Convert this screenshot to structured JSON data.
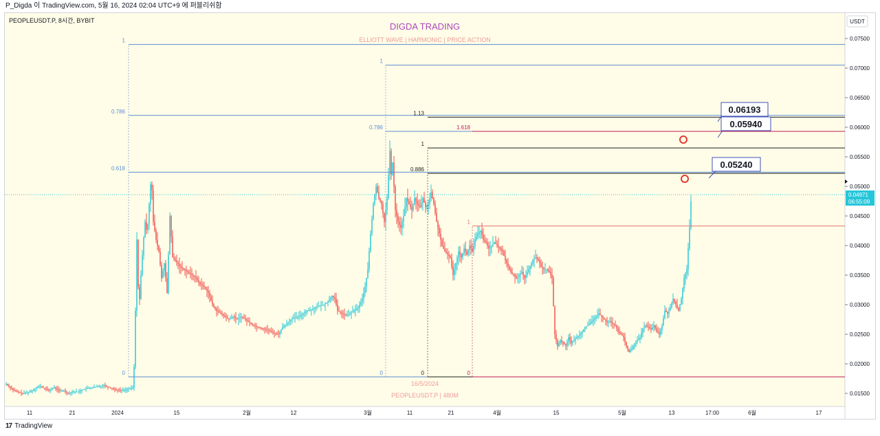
{
  "header": {
    "caption": "P_Digda 이 TradingView.com, 5월 16, 2024 02:04 UTC+9 에 퍼블리쉬함"
  },
  "chart": {
    "symbol_info": "PEOPLEUSDT.P, 8시간, BYBIT",
    "title": "DIGDA TRADING",
    "subtitle": "ELLIOTT WAVE   |   HARMONIC   |   PRICE ACTION",
    "currency": "USDT",
    "watermark_date": "16/5/2024",
    "watermark_symbol": "PEOPLEUSDT.P | 480M",
    "current_price": "0.04971",
    "countdown": "06:55:09"
  },
  "footer": {
    "brand": "TradingView"
  },
  "colors": {
    "background": "#fffde7",
    "up": "#26c6da",
    "down": "#ef5350",
    "fib_blue": "#5b8bd6",
    "fib_black": "#1e1e1e",
    "fib_red": "#c2185b",
    "title": "#ab47bc",
    "subtitle": "#ef9a9a"
  },
  "chart_data": {
    "type": "candlestick",
    "y_axis_ticks": [
      "0.07500",
      "0.07000",
      "0.06500",
      "0.06000",
      "0.05500",
      "0.05000",
      "0.04500",
      "0.04000",
      "0.03500",
      "0.03000",
      "0.02500",
      "0.02000",
      "0.01500"
    ],
    "x_axis_ticks": [
      "11",
      "21",
      "2024",
      "15",
      "2월",
      "12",
      "3월",
      "11",
      "21",
      "4월",
      "15",
      "5월",
      "13",
      "17:00",
      "6월",
      "17"
    ],
    "ylim": [
      0.0128,
      0.0793
    ],
    "fib_levels": [
      {
        "group": "blue-big",
        "label": "1",
        "price": 0.074
      },
      {
        "group": "blue-big",
        "label": "0.786",
        "price": 0.062
      },
      {
        "group": "blue-big",
        "label": "0.618",
        "price": 0.0524
      },
      {
        "group": "blue-big",
        "label": "0",
        "price": 0.0178
      },
      {
        "group": "blue-mid",
        "label": "1",
        "price": 0.0705
      },
      {
        "group": "blue-mid",
        "label": "0.786",
        "price": 0.0593
      },
      {
        "group": "blue-mid",
        "label": "0",
        "price": 0.0178
      },
      {
        "group": "black",
        "label": "1.13",
        "price": 0.0617
      },
      {
        "group": "black",
        "label": "1",
        "price": 0.0565
      },
      {
        "group": "black",
        "label": "0.886",
        "price": 0.0522
      },
      {
        "group": "black",
        "label": "0",
        "price": 0.0178
      },
      {
        "group": "red",
        "label": "1.618",
        "price": 0.0593
      },
      {
        "group": "red",
        "label": "1",
        "price": 0.0433
      },
      {
        "group": "red",
        "label": "0",
        "price": 0.0178
      }
    ],
    "targets": [
      "0.06193",
      "0.05940",
      "0.05240"
    ],
    "price_path": [
      [
        0,
        0.0166
      ],
      [
        12,
        0.0154
      ],
      [
        24,
        0.015
      ],
      [
        32,
        0.0152
      ],
      [
        38,
        0.0155
      ],
      [
        44,
        0.016
      ],
      [
        50,
        0.0162
      ],
      [
        56,
        0.0158
      ],
      [
        62,
        0.0155
      ],
      [
        70,
        0.016
      ],
      [
        78,
        0.0154
      ],
      [
        84,
        0.0155
      ],
      [
        90,
        0.015
      ],
      [
        96,
        0.0153
      ],
      [
        105,
        0.0153
      ],
      [
        115,
        0.0158
      ],
      [
        125,
        0.016
      ],
      [
        135,
        0.0162
      ],
      [
        142,
        0.0164
      ],
      [
        150,
        0.016
      ],
      [
        158,
        0.0157
      ],
      [
        165,
        0.0155
      ],
      [
        172,
        0.0156
      ],
      [
        180,
        0.0158
      ],
      [
        185,
        0.016
      ],
      [
        187,
        0.023
      ],
      [
        190,
        0.041
      ],
      [
        193,
        0.029
      ],
      [
        196,
        0.035
      ],
      [
        199,
        0.04
      ],
      [
        202,
        0.044
      ],
      [
        205,
        0.042
      ],
      [
        208,
        0.047
      ],
      [
        211,
        0.052
      ],
      [
        214,
        0.044
      ],
      [
        218,
        0.041
      ],
      [
        222,
        0.039
      ],
      [
        226,
        0.0345
      ],
      [
        230,
        0.037
      ],
      [
        234,
        0.032
      ],
      [
        238,
        0.045
      ],
      [
        242,
        0.038
      ],
      [
        246,
        0.0375
      ],
      [
        252,
        0.0365
      ],
      [
        258,
        0.036
      ],
      [
        264,
        0.0355
      ],
      [
        270,
        0.035
      ],
      [
        276,
        0.0345
      ],
      [
        282,
        0.0335
      ],
      [
        288,
        0.033
      ],
      [
        294,
        0.032
      ],
      [
        300,
        0.03
      ],
      [
        306,
        0.029
      ],
      [
        312,
        0.0285
      ],
      [
        318,
        0.028
      ],
      [
        324,
        0.0275
      ],
      [
        330,
        0.028
      ],
      [
        336,
        0.0275
      ],
      [
        342,
        0.028
      ],
      [
        348,
        0.0275
      ],
      [
        354,
        0.027
      ],
      [
        360,
        0.0265
      ],
      [
        366,
        0.0262
      ],
      [
        372,
        0.026
      ],
      [
        378,
        0.0258
      ],
      [
        384,
        0.0255
      ],
      [
        390,
        0.0252
      ],
      [
        396,
        0.025
      ],
      [
        402,
        0.0262
      ],
      [
        408,
        0.0268
      ],
      [
        414,
        0.0275
      ],
      [
        420,
        0.0278
      ],
      [
        426,
        0.028
      ],
      [
        432,
        0.0285
      ],
      [
        438,
        0.029
      ],
      [
        444,
        0.0292
      ],
      [
        450,
        0.0295
      ],
      [
        456,
        0.0298
      ],
      [
        462,
        0.03
      ],
      [
        468,
        0.0305
      ],
      [
        474,
        0.0315
      ],
      [
        478,
        0.031
      ],
      [
        482,
        0.029
      ],
      [
        488,
        0.0285
      ],
      [
        494,
        0.0282
      ],
      [
        500,
        0.0285
      ],
      [
        506,
        0.029
      ],
      [
        512,
        0.0295
      ],
      [
        518,
        0.031
      ],
      [
        522,
        0.033
      ],
      [
        526,
        0.036
      ],
      [
        530,
        0.042
      ],
      [
        534,
        0.047
      ],
      [
        538,
        0.05
      ],
      [
        542,
        0.048
      ],
      [
        546,
        0.047
      ],
      [
        550,
        0.044
      ],
      [
        554,
        0.048
      ],
      [
        558,
        0.056
      ],
      [
        560,
        0.052
      ],
      [
        562,
        0.054
      ],
      [
        566,
        0.046
      ],
      [
        570,
        0.044
      ],
      [
        574,
        0.043
      ],
      [
        578,
        0.045
      ],
      [
        582,
        0.048
      ],
      [
        586,
        0.047
      ],
      [
        590,
        0.046
      ],
      [
        594,
        0.048
      ],
      [
        598,
        0.047
      ],
      [
        602,
        0.0465
      ],
      [
        606,
        0.048
      ],
      [
        610,
        0.0465
      ],
      [
        614,
        0.047
      ],
      [
        618,
        0.049
      ],
      [
        622,
        0.047
      ],
      [
        626,
        0.044
      ],
      [
        630,
        0.042
      ],
      [
        634,
        0.04
      ],
      [
        638,
        0.039
      ],
      [
        642,
        0.0385
      ],
      [
        646,
        0.038
      ],
      [
        650,
        0.035
      ],
      [
        654,
        0.037
      ],
      [
        658,
        0.039
      ],
      [
        662,
        0.038
      ],
      [
        666,
        0.0395
      ],
      [
        670,
        0.0385
      ],
      [
        674,
        0.04
      ],
      [
        678,
        0.039
      ],
      [
        682,
        0.041
      ],
      [
        686,
        0.042
      ],
      [
        690,
        0.0425
      ],
      [
        694,
        0.041
      ],
      [
        698,
        0.0405
      ],
      [
        702,
        0.0395
      ],
      [
        706,
        0.04
      ],
      [
        710,
        0.0405
      ],
      [
        714,
        0.04
      ],
      [
        718,
        0.0395
      ],
      [
        722,
        0.039
      ],
      [
        726,
        0.0375
      ],
      [
        730,
        0.0365
      ],
      [
        734,
        0.0355
      ],
      [
        738,
        0.035
      ],
      [
        742,
        0.0345
      ],
      [
        746,
        0.035
      ],
      [
        750,
        0.0355
      ],
      [
        754,
        0.0345
      ],
      [
        758,
        0.0355
      ],
      [
        762,
        0.0365
      ],
      [
        766,
        0.0375
      ],
      [
        770,
        0.038
      ],
      [
        774,
        0.0375
      ],
      [
        778,
        0.0365
      ],
      [
        782,
        0.036
      ],
      [
        786,
        0.036
      ],
      [
        790,
        0.0355
      ],
      [
        794,
        0.0345
      ],
      [
        798,
        0.025
      ],
      [
        802,
        0.023
      ],
      [
        806,
        0.024
      ],
      [
        810,
        0.0235
      ],
      [
        814,
        0.023
      ],
      [
        818,
        0.0245
      ],
      [
        822,
        0.0235
      ],
      [
        826,
        0.024
      ],
      [
        830,
        0.0245
      ],
      [
        834,
        0.025
      ],
      [
        838,
        0.0255
      ],
      [
        842,
        0.0262
      ],
      [
        846,
        0.0265
      ],
      [
        850,
        0.027
      ],
      [
        854,
        0.0275
      ],
      [
        858,
        0.028
      ],
      [
        862,
        0.0285
      ],
      [
        866,
        0.028
      ],
      [
        870,
        0.0275
      ],
      [
        874,
        0.027
      ],
      [
        878,
        0.0272
      ],
      [
        882,
        0.0268
      ],
      [
        886,
        0.0265
      ],
      [
        890,
        0.0255
      ],
      [
        894,
        0.025
      ],
      [
        898,
        0.0245
      ],
      [
        902,
        0.023
      ],
      [
        906,
        0.022
      ],
      [
        910,
        0.0225
      ],
      [
        914,
        0.0235
      ],
      [
        918,
        0.024
      ],
      [
        922,
        0.0245
      ],
      [
        926,
        0.026
      ],
      [
        930,
        0.0265
      ],
      [
        934,
        0.0262
      ],
      [
        938,
        0.0258
      ],
      [
        942,
        0.0265
      ],
      [
        946,
        0.0255
      ],
      [
        950,
        0.025
      ],
      [
        954,
        0.0265
      ],
      [
        958,
        0.029
      ],
      [
        962,
        0.0285
      ],
      [
        966,
        0.0295
      ],
      [
        970,
        0.031
      ],
      [
        974,
        0.03
      ],
      [
        978,
        0.029
      ],
      [
        982,
        0.031
      ],
      [
        986,
        0.0345
      ],
      [
        990,
        0.036
      ],
      [
        994,
        0.043
      ],
      [
        997,
        0.0497
      ]
    ]
  }
}
